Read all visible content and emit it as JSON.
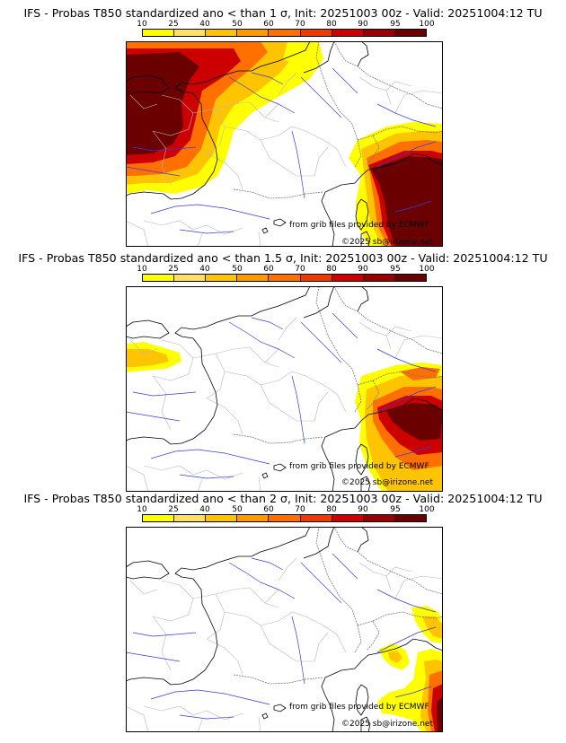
{
  "colorbar": {
    "ticks": [
      "10",
      "25",
      "40",
      "50",
      "60",
      "70",
      "80",
      "90",
      "95",
      "100"
    ],
    "colors": [
      "#ffff00",
      "#ffe066",
      "#ffc400",
      "#ff9a00",
      "#ff7000",
      "#ee3a00",
      "#cc0000",
      "#990000",
      "#6a0000"
    ]
  },
  "panels": [
    {
      "title": "IFS - Probas T850  standardized ano < than 1 σ, Init: 20251003 00z - Valid: 20251004:12 TU",
      "credit_data": "from grib files provided by ECMWF",
      "credit_copyright": "©2025 sb@irizone.net"
    },
    {
      "title": "IFS - Probas T850  standardized ano < than 1.5 σ, Init: 20251003 00z - Valid: 20251004:12 TU",
      "credit_data": "from grib files provided by ECMWF",
      "credit_copyright": "©2025 sb@irizone.net"
    },
    {
      "title": "IFS - Probas T850  standardized ano < than 2 σ, Init: 20251003 00z - Valid: 20251004:12 TU",
      "credit_data": "from grib files provided by ECMWF",
      "credit_copyright": "©2025 sb@irizone.net"
    }
  ]
}
